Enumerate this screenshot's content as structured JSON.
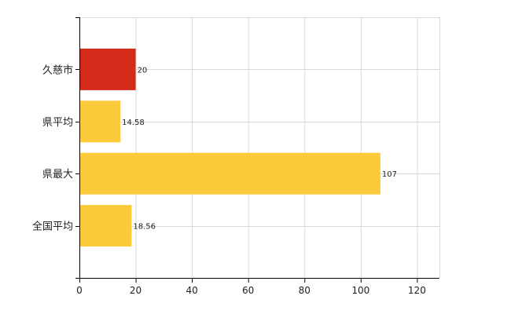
{
  "chart_data": {
    "type": "bar",
    "orientation": "horizontal",
    "categories": [
      "久慈市",
      "県平均",
      "県最大",
      "全国平均"
    ],
    "values": [
      20,
      14.58,
      107,
      18.56
    ],
    "value_labels": [
      "20",
      "14.58",
      "107",
      "18.56"
    ],
    "bar_colors": [
      "#d42a1a",
      "#fccb3b",
      "#fccb3b",
      "#fccb3b"
    ],
    "xlim": [
      0,
      128
    ],
    "x_ticks": [
      0,
      20,
      40,
      60,
      80,
      100,
      120
    ],
    "x_tick_labels": [
      "0",
      "20",
      "40",
      "60",
      "80",
      "100",
      "120"
    ],
    "grid": true,
    "title": "",
    "xlabel": "",
    "ylabel": ""
  }
}
